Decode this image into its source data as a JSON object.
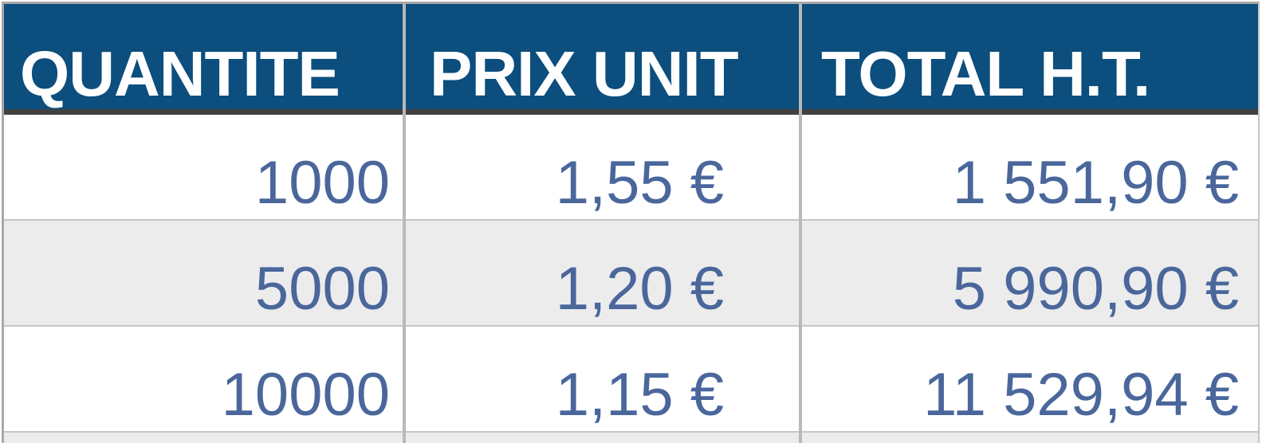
{
  "colors": {
    "header-bg": "#0c4e7d",
    "header-text": "#ffffff",
    "value-text": "#4a679c",
    "alt-row-bg": "#ececec",
    "header-shadow": "#414141",
    "divider": "#b9b9b9",
    "outer-border": "#a8a8a8",
    "hairline": "#c6c6c6"
  },
  "table": {
    "headers": {
      "quantite": "QUANTITE",
      "prix_unit": "PRIX UNIT",
      "total_ht": "TOTAL H.T."
    },
    "rows": [
      {
        "quantite": "1000",
        "prix_unit": "1,55 €",
        "total_ht": "1 551,90 €"
      },
      {
        "quantite": "5000",
        "prix_unit": "1,20 €",
        "total_ht": "5 990,90 €"
      },
      {
        "quantite": "10000",
        "prix_unit": "1,15 €",
        "total_ht": "11 529,94 €"
      }
    ]
  }
}
